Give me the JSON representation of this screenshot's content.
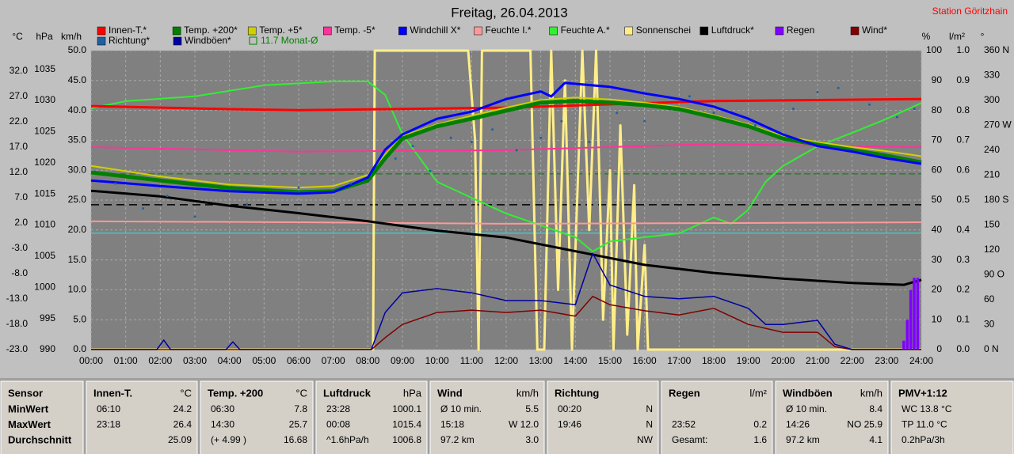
{
  "chart_data": {
    "type": "line",
    "title": "Freitag, 26.04.2013",
    "xlim": [
      0,
      24
    ],
    "xticks": [
      {
        "value": 0,
        "label": "00:00"
      },
      {
        "value": 1,
        "label": "01:00"
      },
      {
        "value": 2,
        "label": "02:00"
      },
      {
        "value": 3,
        "label": "03:00"
      },
      {
        "value": 4,
        "label": "04:00"
      },
      {
        "value": 5,
        "label": "05:00"
      },
      {
        "value": 6,
        "label": "06:00"
      },
      {
        "value": 7,
        "label": "07:00"
      },
      {
        "value": 8,
        "label": "08:00"
      },
      {
        "value": 9,
        "label": "09:00"
      },
      {
        "value": 10,
        "label": "10:00"
      },
      {
        "value": 11,
        "label": "11:00"
      },
      {
        "value": 12,
        "label": "12:00"
      },
      {
        "value": 13,
        "label": "13:00"
      },
      {
        "value": 14,
        "label": "14:00"
      },
      {
        "value": 15,
        "label": "15:00"
      },
      {
        "value": 16,
        "label": "16:00"
      },
      {
        "value": 17,
        "label": "17:00"
      },
      {
        "value": 18,
        "label": "18:00"
      },
      {
        "value": 19,
        "label": "19:00"
      },
      {
        "value": 20,
        "label": "20:00"
      },
      {
        "value": 21,
        "label": "21:00"
      },
      {
        "value": 22,
        "label": "22:00"
      },
      {
        "value": 23,
        "label": "23:00"
      },
      {
        "value": 24,
        "label": "24:00"
      }
    ],
    "grid": true,
    "axes": [
      {
        "label": "°C",
        "lim": [
          -23,
          36.06
        ],
        "ticks": [
          {
            "value": 32,
            "label": "32.0"
          },
          {
            "value": 27,
            "label": "27.0"
          },
          {
            "value": 22,
            "label": "22.0"
          },
          {
            "value": 17,
            "label": "17.0"
          },
          {
            "value": 12,
            "label": "12.0"
          },
          {
            "value": 7,
            "label": "7.0"
          },
          {
            "value": 2,
            "label": "2.0"
          },
          {
            "value": -3,
            "label": "-3.0"
          },
          {
            "value": -8,
            "label": "-8.0"
          },
          {
            "value": -13,
            "label": "-13.0"
          },
          {
            "value": -18,
            "label": "-18.0"
          },
          {
            "value": -23,
            "label": "-23.0"
          }
        ]
      },
      {
        "label": "hPa",
        "lim": [
          990,
          1038
        ],
        "ticks": [
          1035,
          1030,
          1025,
          1020,
          1015,
          1010,
          1005,
          1000,
          995,
          990
        ]
      },
      {
        "label": "km/h",
        "lim": [
          0,
          50
        ],
        "grid": true,
        "ticks": [
          {
            "value": 50,
            "label": "50.0"
          },
          {
            "value": 45,
            "label": "45.0"
          },
          {
            "value": 40,
            "label": "40.0"
          },
          {
            "value": 35,
            "label": "35.0"
          },
          {
            "value": 30,
            "label": "30.0"
          },
          {
            "value": 25,
            "label": "25.0"
          },
          {
            "value": 20,
            "label": "20.0"
          },
          {
            "value": 15,
            "label": "15.0"
          },
          {
            "value": 10,
            "label": "10.0"
          },
          {
            "value": 5,
            "label": "5.0"
          },
          {
            "value": 0,
            "label": "0.0"
          }
        ]
      },
      {
        "label": "%",
        "lim": [
          0,
          100
        ],
        "ticks": [
          100,
          90,
          80,
          70,
          60,
          50,
          40,
          30,
          20,
          10,
          0
        ]
      },
      {
        "label": "l/m²",
        "lim": [
          0,
          1
        ],
        "ticks": [
          {
            "value": 1,
            "label": "1.0"
          },
          {
            "value": 0.9,
            "label": "0.9"
          },
          {
            "value": 0.8,
            "label": "0.8"
          },
          {
            "value": 0.7,
            "label": "0.7"
          },
          {
            "value": 0.6,
            "label": "0.6"
          },
          {
            "value": 0.5,
            "label": "0.5"
          },
          {
            "value": 0.4,
            "label": "0.4"
          },
          {
            "value": 0.3,
            "label": "0.3"
          },
          {
            "value": 0.2,
            "label": "0.2"
          },
          {
            "value": 0.1,
            "label": "0.1"
          },
          {
            "value": 0,
            "label": "0.0"
          }
        ]
      },
      {
        "label": "°",
        "lim": [
          0,
          360
        ],
        "ticks": [
          {
            "value": 360,
            "label": "360 N"
          },
          330,
          300,
          {
            "value": 270,
            "label": "270 W"
          },
          240,
          210,
          {
            "value": 180,
            "label": "180 S"
          },
          150,
          120,
          {
            "value": 90,
            "label": "90 O"
          },
          60,
          30,
          {
            "value": 0,
            "label": "0 N"
          }
        ]
      }
    ],
    "reference_lines": [
      {
        "axis": 0,
        "value": 0,
        "color": "#40c8c8"
      },
      {
        "axis": 1,
        "value": 1013.25,
        "color": "#000000",
        "dashed": true
      }
    ],
    "monthly_avg": {
      "axis": 0,
      "value": 11.7,
      "label": "11.7 Monat-Ø",
      "color": "#008000"
    },
    "series": [
      {
        "name": "Innen-T.*",
        "color": "#ff0000",
        "axis": 0,
        "type": "line",
        "width": 3,
        "x": [
          0,
          4,
          6,
          12,
          18,
          24
        ],
        "values": [
          25.1,
          24.5,
          24.3,
          24.8,
          26.1,
          26.5
        ]
      },
      {
        "name": "Temp. +200*",
        "color": "#008000",
        "axis": 0,
        "type": "line",
        "width": 5,
        "x": [
          0,
          2,
          4,
          6,
          7,
          8,
          8.5,
          9,
          10,
          11,
          12,
          13,
          14,
          15,
          16,
          17,
          18,
          19,
          20,
          21,
          22,
          23,
          24
        ],
        "values": [
          12.0,
          10.4,
          8.9,
          8.1,
          8.3,
          10.4,
          14.8,
          18.7,
          21.1,
          22.6,
          24.2,
          25.8,
          26.1,
          25.8,
          25.3,
          24.5,
          22.9,
          21.1,
          18.7,
          17.5,
          16.4,
          15.3,
          14.0
        ]
      },
      {
        "name": "Temp. +5*",
        "color": "#d0d000",
        "axis": 0,
        "type": "line",
        "width": 2,
        "x": [
          0,
          2,
          4,
          6,
          7,
          8,
          8.5,
          9,
          10,
          11,
          12,
          13,
          14,
          15,
          16,
          17,
          18,
          19,
          20,
          21,
          22,
          23,
          24
        ],
        "values": [
          13.3,
          11.2,
          9.6,
          9.0,
          9.3,
          11.5,
          15.5,
          19.2,
          21.5,
          23.2,
          24.8,
          26.3,
          26.8,
          26.4,
          25.8,
          24.9,
          23.3,
          21.5,
          19.2,
          18.0,
          17.0,
          16.2,
          15.2
        ]
      },
      {
        "name": "Temp. -5*",
        "color": "#ff3399",
        "axis": 0,
        "type": "line",
        "width": 2,
        "x": [
          0,
          6,
          12,
          18,
          24
        ],
        "values": [
          17.0,
          16.1,
          16.4,
          17.6,
          17.0
        ]
      },
      {
        "name": "Windchill X*",
        "color": "#0000ff",
        "axis": 0,
        "type": "line",
        "width": 3,
        "x": [
          0,
          2,
          4,
          6,
          7,
          8,
          8.5,
          9,
          10,
          11,
          12,
          13,
          13.3,
          13.7,
          14,
          15,
          16,
          17,
          18,
          19,
          20,
          21,
          22,
          23,
          24
        ],
        "values": [
          10.4,
          9.3,
          8.3,
          7.8,
          8.1,
          11.0,
          16.5,
          19.5,
          22.6,
          24.0,
          26.5,
          28.0,
          27.0,
          29.7,
          29.5,
          28.9,
          27.6,
          26.5,
          25.0,
          22.6,
          19.5,
          17.2,
          16.1,
          14.8,
          13.7
        ]
      },
      {
        "name": "Feuchte I.*",
        "color": "#ff9999",
        "axis": 3,
        "type": "line",
        "width": 2,
        "x": [
          0,
          6,
          12,
          18,
          24
        ],
        "values": [
          42.9,
          42.6,
          42.1,
          42.3,
          42.6
        ]
      },
      {
        "name": "Feuchte A.*",
        "color": "#33ee33",
        "axis": 3,
        "type": "line",
        "width": 2,
        "x": [
          0,
          1,
          3,
          5,
          7,
          8,
          8.5,
          9,
          10,
          11,
          12,
          13,
          14,
          14.5,
          15,
          16,
          17,
          18,
          18.5,
          19,
          19.5,
          20,
          21,
          22,
          23,
          24
        ],
        "values": [
          80.7,
          83.1,
          84.7,
          88.4,
          89.7,
          89.7,
          85.2,
          72.0,
          56.1,
          50.8,
          45.5,
          41.5,
          37.6,
          32.8,
          36.2,
          37.6,
          38.9,
          44.2,
          42.1,
          46.8,
          56.1,
          61.4,
          68.0,
          72.5,
          77.2,
          82.5
        ]
      },
      {
        "name": "Sonnenschei",
        "color": "#ffee88",
        "axis": 3,
        "type": "line",
        "width": 3,
        "x": [
          0,
          8.15,
          8.2,
          10.9,
          11.1,
          11.2,
          11.3,
          12.7,
          12.9,
          13.1,
          13.3,
          13.5,
          13.7,
          13.9,
          14.2,
          14.4,
          14.6,
          14.8,
          15.0,
          15.1,
          15.3,
          15.5,
          15.7,
          15.8,
          16.0,
          16.1,
          24
        ],
        "values": [
          0,
          0,
          100,
          100,
          70,
          0,
          100,
          100,
          0,
          0,
          100,
          20,
          90,
          0,
          100,
          40,
          100,
          10,
          60,
          0,
          75,
          5,
          55,
          0,
          35,
          0,
          0
        ]
      },
      {
        "name": "Luftdruck*",
        "color": "#000000",
        "axis": 1,
        "type": "line",
        "width": 3,
        "x": [
          0,
          2,
          4,
          6,
          8,
          10,
          12,
          14,
          16,
          18,
          20,
          22,
          23.5,
          24
        ],
        "values": [
          1015.5,
          1014.6,
          1013.1,
          1011.9,
          1010.6,
          1009.1,
          1008.0,
          1005.8,
          1003.6,
          1002.3,
          1001.4,
          1000.7,
          1000.4,
          1001.2
        ]
      },
      {
        "name": "Regen",
        "color": "#8000ff",
        "axis": 4,
        "type": "bar",
        "x": [
          23.5,
          23.6,
          23.7,
          23.8,
          23.9
        ],
        "values": [
          0.03,
          0.1,
          0.2,
          0.24,
          0.24
        ]
      },
      {
        "name": "Wind*",
        "color": "#800000",
        "axis": 2,
        "type": "line",
        "width": 1.5,
        "x": [
          0,
          8.1,
          8.5,
          9,
          10,
          11,
          12,
          13,
          14,
          14.5,
          15,
          16,
          17,
          18,
          19,
          20,
          21,
          21.5,
          22,
          24
        ],
        "values": [
          0,
          0,
          2.0,
          4.2,
          6.2,
          6.6,
          6.2,
          6.6,
          5.6,
          8.9,
          7.5,
          6.5,
          5.8,
          6.9,
          4.2,
          2.9,
          2.9,
          0.5,
          0,
          0
        ]
      },
      {
        "name": "Richtung*",
        "color": "#2060a0",
        "axis": 5,
        "type": "scatter",
        "x": [
          0.7,
          1.5,
          2.2,
          3.0,
          4.5,
          6.0,
          7.5,
          8.8,
          9.3,
          9.8,
          10.4,
          11.0,
          11.6,
          12.3,
          13.0,
          13.6,
          14.4,
          15.2,
          16.0,
          17.3,
          18.0,
          19.2,
          20.3,
          21.0,
          21.6,
          22.5,
          23.3,
          23.8
        ],
        "values": [
          200,
          170,
          185,
          160,
          175,
          195,
          200,
          230,
          245,
          215,
          255,
          250,
          265,
          240,
          255,
          275,
          250,
          285,
          275,
          305,
          285,
          270,
          290,
          310,
          315,
          295,
          280,
          290
        ]
      },
      {
        "name": "Windböen*",
        "color": "#0000a0",
        "axis": 2,
        "type": "line",
        "width": 1.5,
        "x": [
          0,
          1.9,
          2.1,
          2.3,
          3.9,
          4.1,
          4.3,
          8.1,
          8.5,
          9,
          10,
          11,
          12,
          13,
          14,
          14.5,
          15,
          16,
          17,
          18,
          19,
          19.5,
          20,
          21,
          21.5,
          22,
          24
        ],
        "values": [
          0,
          0,
          1.6,
          0,
          0,
          1.3,
          0,
          0,
          6.2,
          9.5,
          10.2,
          9.5,
          8.2,
          8.2,
          7.5,
          16.1,
          10.8,
          8.9,
          8.5,
          8.9,
          6.9,
          4.2,
          4.2,
          4.9,
          0.9,
          0,
          0
        ]
      }
    ]
  },
  "station": "Station Göritzhain",
  "stats": {
    "panels": [
      {
        "header": [
          "Sensor"
        ],
        "rows": [
          [
            "MinWert"
          ],
          [
            "MaxWert"
          ],
          [
            "Durchschnitt"
          ]
        ]
      },
      {
        "header": [
          "Innen-T.",
          "°C"
        ],
        "rows": [
          [
            "06:10",
            "24.2"
          ],
          [
            "23:18",
            "26.4"
          ],
          [
            null,
            "25.09"
          ]
        ]
      },
      {
        "header": [
          "Temp. +200",
          "°C"
        ],
        "rows": [
          [
            "06:30",
            "7.8"
          ],
          [
            "14:30",
            "25.7"
          ],
          [
            "(+ 4.99 )",
            "16.68"
          ]
        ]
      },
      {
        "header": [
          "Luftdruck",
          "hPa"
        ],
        "rows": [
          [
            "23:28",
            "1000.1"
          ],
          [
            "00:08",
            "1015.4"
          ],
          [
            "^1.6hPa/h",
            "1006.8"
          ]
        ]
      },
      {
        "header": [
          "Wind",
          "km/h"
        ],
        "rows": [
          [
            "Ø 10 min.",
            "5.5"
          ],
          [
            "15:18",
            "W 12.0"
          ],
          [
            "97.2 km",
            "3.0"
          ]
        ]
      },
      {
        "header": [
          "Richtung"
        ],
        "rows": [
          [
            "00:20",
            "N"
          ],
          [
            "19:46",
            "N"
          ],
          [
            null,
            "NW"
          ]
        ]
      },
      {
        "header": [
          "Regen",
          "l/m²"
        ],
        "rows": [
          [
            null,
            null
          ],
          [
            "23:52",
            "0.2"
          ],
          [
            "Gesamt:",
            "1.6"
          ]
        ]
      },
      {
        "header": [
          "Windböen",
          "km/h"
        ],
        "rows": [
          [
            "Ø 10 min.",
            "8.4"
          ],
          [
            "14:26",
            "NO 25.9"
          ],
          [
            "97.2 km",
            "4.1"
          ]
        ]
      },
      {
        "header": [
          "PMV+1:12"
        ],
        "rows": [
          [
            "WC 13.8 °C"
          ],
          [
            "TP 11.0 °C"
          ],
          [
            "0.2hPa/3h"
          ]
        ]
      }
    ]
  }
}
